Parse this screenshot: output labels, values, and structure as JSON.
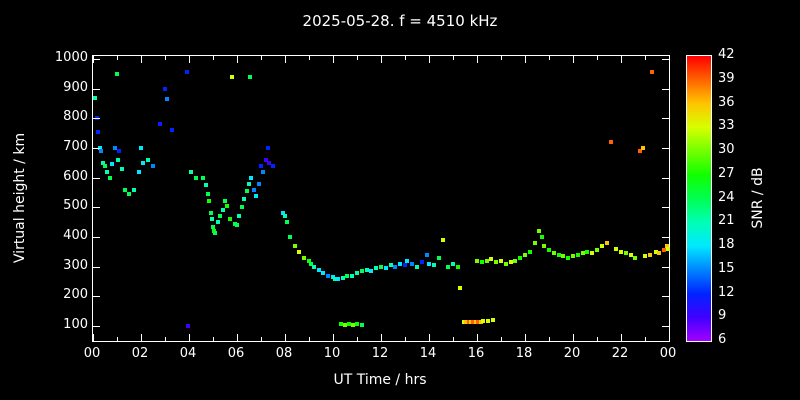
{
  "title": "2025-05-28. f = 4510 kHz",
  "xlabel": "UT Time / hrs",
  "ylabel": "Virtual height / km",
  "colorbar": {
    "label": "SNR / dB",
    "min": 6,
    "max": 42,
    "ticks": [
      42,
      39,
      36,
      33,
      30,
      27,
      24,
      21,
      18,
      15,
      12,
      9,
      6
    ]
  },
  "axes": {
    "x_tick_labels": [
      "00",
      "02",
      "04",
      "06",
      "08",
      "10",
      "12",
      "14",
      "16",
      "18",
      "20",
      "22",
      "00"
    ],
    "x_tick_values": [
      0,
      2,
      4,
      6,
      8,
      10,
      12,
      14,
      16,
      18,
      20,
      22,
      24
    ],
    "y_tick_labels": [
      "100",
      "200",
      "300",
      "400",
      "500",
      "600",
      "700",
      "800",
      "900",
      "1000"
    ],
    "y_tick_values": [
      100,
      200,
      300,
      400,
      500,
      600,
      700,
      800,
      900,
      1000
    ],
    "x_range": [
      0,
      24
    ],
    "y_range": [
      50,
      1010
    ]
  },
  "chart_data": {
    "type": "scatter",
    "title": "2025-05-28. f = 4510 kHz",
    "xlabel": "UT Time / hrs",
    "ylabel": "Virtual height / km",
    "color_label": "SNR / dB",
    "color_range": [
      6,
      42
    ],
    "xlim": [
      0,
      24
    ],
    "ylim": [
      50,
      1010
    ],
    "grid": false,
    "points_format": [
      "time_hrs",
      "virtual_height_km",
      "snr_db"
    ],
    "points": [
      [
        0.1,
        870,
        21
      ],
      [
        0.15,
        800,
        12
      ],
      [
        0.2,
        755,
        12
      ],
      [
        0.3,
        700,
        18
      ],
      [
        0.35,
        690,
        15
      ],
      [
        0.4,
        650,
        21
      ],
      [
        0.5,
        640,
        24
      ],
      [
        0.6,
        620,
        21
      ],
      [
        0.7,
        600,
        24
      ],
      [
        0.8,
        645,
        18
      ],
      [
        0.9,
        700,
        15
      ],
      [
        1.0,
        950,
        24
      ],
      [
        1.05,
        660,
        21
      ],
      [
        1.1,
        690,
        12
      ],
      [
        1.2,
        630,
        21
      ],
      [
        1.35,
        560,
        24
      ],
      [
        1.5,
        545,
        24
      ],
      [
        1.7,
        560,
        21
      ],
      [
        1.9,
        620,
        18
      ],
      [
        2.0,
        700,
        18
      ],
      [
        2.1,
        650,
        18
      ],
      [
        2.3,
        660,
        21
      ],
      [
        2.5,
        640,
        15
      ],
      [
        2.8,
        780,
        12
      ],
      [
        3.0,
        900,
        12
      ],
      [
        3.1,
        865,
        15
      ],
      [
        3.3,
        760,
        12
      ],
      [
        3.9,
        955,
        12
      ],
      [
        3.95,
        100,
        9
      ],
      [
        4.1,
        620,
        21
      ],
      [
        4.3,
        600,
        24
      ],
      [
        4.6,
        600,
        24
      ],
      [
        4.7,
        575,
        21
      ],
      [
        4.8,
        545,
        24
      ],
      [
        4.85,
        520,
        27
      ],
      [
        4.9,
        480,
        24
      ],
      [
        4.95,
        460,
        21
      ],
      [
        5.0,
        435,
        24
      ],
      [
        5.05,
        420,
        27
      ],
      [
        5.1,
        415,
        24
      ],
      [
        5.2,
        450,
        21
      ],
      [
        5.3,
        470,
        24
      ],
      [
        5.4,
        490,
        21
      ],
      [
        5.5,
        520,
        24
      ],
      [
        5.6,
        505,
        27
      ],
      [
        5.7,
        460,
        27
      ],
      [
        5.8,
        940,
        33
      ],
      [
        5.9,
        445,
        24
      ],
      [
        6.0,
        440,
        24
      ],
      [
        6.1,
        470,
        21
      ],
      [
        6.2,
        500,
        24
      ],
      [
        6.3,
        530,
        21
      ],
      [
        6.4,
        555,
        24
      ],
      [
        6.5,
        580,
        21
      ],
      [
        6.55,
        940,
        24
      ],
      [
        6.6,
        600,
        18
      ],
      [
        6.7,
        560,
        15
      ],
      [
        6.8,
        540,
        18
      ],
      [
        6.9,
        580,
        15
      ],
      [
        7.0,
        640,
        12
      ],
      [
        7.1,
        620,
        15
      ],
      [
        7.2,
        660,
        9
      ],
      [
        7.3,
        700,
        12
      ],
      [
        7.35,
        650,
        9
      ],
      [
        7.5,
        640,
        12
      ],
      [
        7.9,
        480,
        18
      ],
      [
        8.0,
        470,
        21
      ],
      [
        8.1,
        450,
        24
      ],
      [
        8.2,
        400,
        24
      ],
      [
        8.4,
        370,
        30
      ],
      [
        8.6,
        350,
        33
      ],
      [
        8.8,
        330,
        30
      ],
      [
        9.0,
        320,
        27
      ],
      [
        9.1,
        310,
        24
      ],
      [
        9.2,
        300,
        21
      ],
      [
        9.4,
        290,
        18
      ],
      [
        9.6,
        280,
        18
      ],
      [
        9.8,
        270,
        15
      ],
      [
        10.0,
        265,
        18
      ],
      [
        10.1,
        260,
        21
      ],
      [
        10.2,
        258,
        18
      ],
      [
        10.35,
        108,
        27
      ],
      [
        10.4,
        262,
        21
      ],
      [
        10.5,
        105,
        30
      ],
      [
        10.6,
        270,
        24
      ],
      [
        10.65,
        108,
        27
      ],
      [
        10.8,
        268,
        21
      ],
      [
        10.85,
        105,
        30
      ],
      [
        11.0,
        108,
        27
      ],
      [
        11.0,
        280,
        21
      ],
      [
        11.2,
        105,
        24
      ],
      [
        11.2,
        285,
        24
      ],
      [
        11.4,
        290,
        21
      ],
      [
        11.6,
        285,
        18
      ],
      [
        11.8,
        295,
        21
      ],
      [
        12.0,
        300,
        24
      ],
      [
        12.2,
        295,
        18
      ],
      [
        12.4,
        305,
        21
      ],
      [
        12.6,
        300,
        15
      ],
      [
        12.8,
        310,
        18
      ],
      [
        13.0,
        305,
        12
      ],
      [
        13.1,
        320,
        18
      ],
      [
        13.3,
        310,
        15
      ],
      [
        13.5,
        300,
        21
      ],
      [
        13.7,
        315,
        12
      ],
      [
        13.9,
        340,
        15
      ],
      [
        14.0,
        310,
        18
      ],
      [
        14.2,
        305,
        21
      ],
      [
        14.4,
        330,
        24
      ],
      [
        14.6,
        390,
        33
      ],
      [
        14.8,
        300,
        24
      ],
      [
        15.0,
        310,
        21
      ],
      [
        15.2,
        300,
        27
      ],
      [
        15.3,
        230,
        33
      ],
      [
        15.45,
        115,
        33
      ],
      [
        15.55,
        115,
        36
      ],
      [
        15.65,
        115,
        39
      ],
      [
        15.75,
        115,
        36
      ],
      [
        15.85,
        115,
        39
      ],
      [
        15.95,
        115,
        36
      ],
      [
        16.05,
        115,
        39
      ],
      [
        16.15,
        115,
        36
      ],
      [
        16.25,
        118,
        33
      ],
      [
        16.45,
        118,
        33
      ],
      [
        16.65,
        120,
        33
      ],
      [
        16.0,
        320,
        30
      ],
      [
        16.2,
        315,
        27
      ],
      [
        16.4,
        320,
        30
      ],
      [
        16.6,
        325,
        33
      ],
      [
        16.8,
        315,
        30
      ],
      [
        17.0,
        320,
        33
      ],
      [
        17.2,
        310,
        30
      ],
      [
        17.4,
        315,
        33
      ],
      [
        17.6,
        320,
        30
      ],
      [
        17.8,
        330,
        27
      ],
      [
        18.0,
        340,
        30
      ],
      [
        18.2,
        350,
        27
      ],
      [
        18.4,
        380,
        30
      ],
      [
        18.6,
        420,
        30
      ],
      [
        18.7,
        400,
        27
      ],
      [
        18.8,
        370,
        30
      ],
      [
        19.0,
        355,
        27
      ],
      [
        19.2,
        345,
        30
      ],
      [
        19.4,
        340,
        27
      ],
      [
        19.6,
        335,
        30
      ],
      [
        19.8,
        330,
        27
      ],
      [
        20.0,
        335,
        30
      ],
      [
        20.2,
        340,
        27
      ],
      [
        20.4,
        345,
        30
      ],
      [
        20.6,
        350,
        27
      ],
      [
        20.8,
        345,
        33
      ],
      [
        21.0,
        355,
        30
      ],
      [
        21.2,
        370,
        33
      ],
      [
        21.4,
        380,
        36
      ],
      [
        21.6,
        720,
        39
      ],
      [
        21.8,
        360,
        33
      ],
      [
        22.0,
        350,
        33
      ],
      [
        22.2,
        345,
        30
      ],
      [
        22.4,
        340,
        33
      ],
      [
        22.6,
        330,
        30
      ],
      [
        22.8,
        690,
        39
      ],
      [
        22.9,
        700,
        36
      ],
      [
        23.0,
        335,
        33
      ],
      [
        23.2,
        340,
        36
      ],
      [
        23.3,
        955,
        39
      ],
      [
        23.45,
        350,
        33
      ],
      [
        23.6,
        345,
        36
      ],
      [
        23.8,
        355,
        39
      ],
      [
        23.9,
        370,
        36
      ],
      [
        23.95,
        360,
        33
      ]
    ]
  }
}
